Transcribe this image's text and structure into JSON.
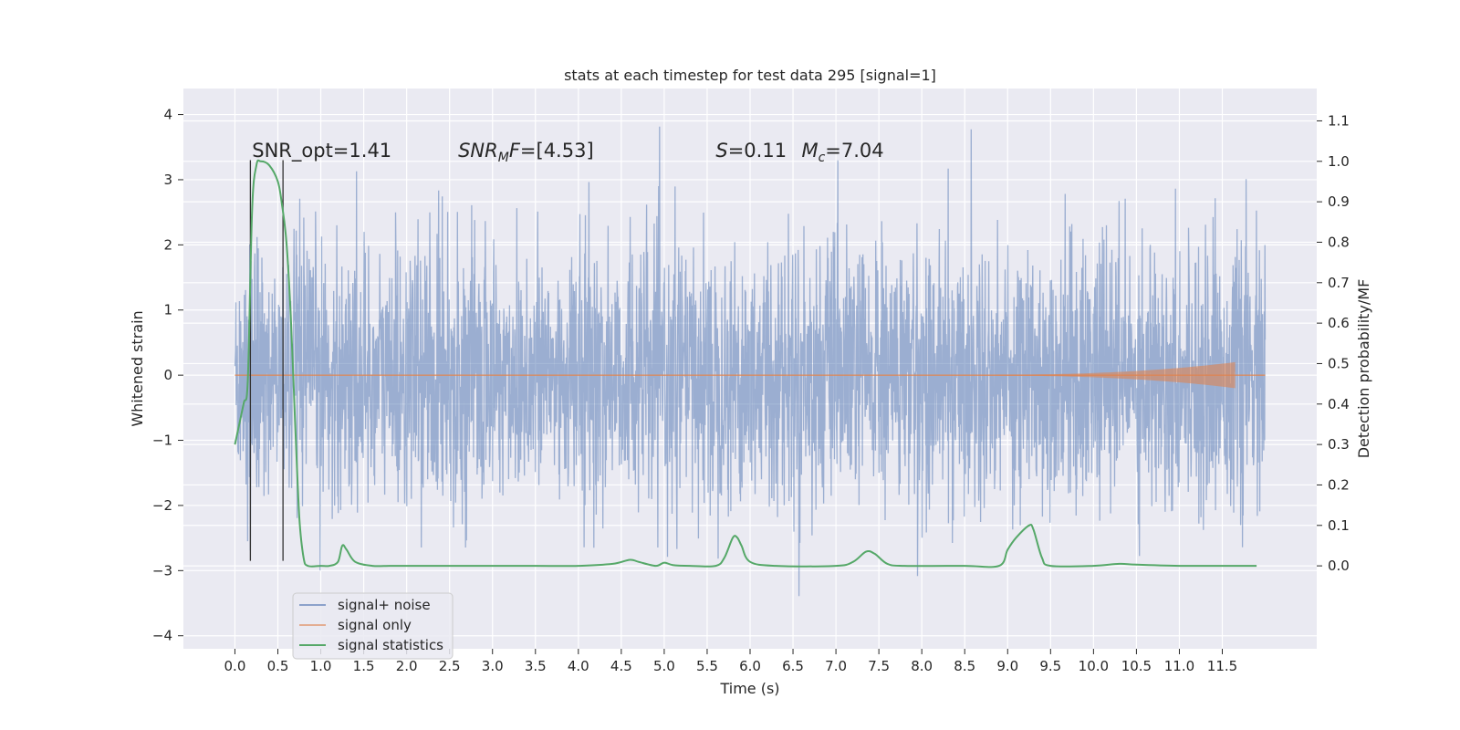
{
  "chart_data": {
    "type": "line",
    "title": "stats at each timestep for test data 295 [signal=1]",
    "xlabel": "Time (s)",
    "ylabel_left": "Whitened strain",
    "ylabel_right": "Detection probability/MF",
    "xlim": [
      -0.6,
      12.6
    ],
    "ylim_left": [
      -4.2,
      4.4
    ],
    "ylim_right": [
      -0.205,
      1.18
    ],
    "x_ticks": [
      0.0,
      0.5,
      1.0,
      1.5,
      2.0,
      2.5,
      3.0,
      3.5,
      4.0,
      4.5,
      5.0,
      5.5,
      6.0,
      6.5,
      7.0,
      7.5,
      8.0,
      8.5,
      9.0,
      9.5,
      10.0,
      10.5,
      11.0,
      11.5
    ],
    "x_tick_labels": [
      "0.0",
      "0.5",
      "1.0",
      "1.5",
      "2.0",
      "2.5",
      "3.0",
      "3.5",
      "4.0",
      "4.5",
      "5.0",
      "5.5",
      "6.0",
      "6.5",
      "7.0",
      "7.5",
      "8.0",
      "8.5",
      "9.0",
      "9.5",
      "10.0",
      "10.5",
      "11.0",
      "11.5"
    ],
    "y_left_ticks": [
      -4,
      -3,
      -2,
      -1,
      0,
      1,
      2,
      3,
      4
    ],
    "y_left_tick_labels": [
      "−4",
      "−3",
      "−2",
      "−1",
      "0",
      "1",
      "2",
      "3",
      "4"
    ],
    "y_right_ticks": [
      0.0,
      0.1,
      0.2,
      0.3,
      0.4,
      0.5,
      0.6,
      0.7,
      0.8,
      0.9,
      1.0,
      1.1
    ],
    "y_right_tick_labels": [
      "0.0",
      "0.1",
      "0.2",
      "0.3",
      "0.4",
      "0.5",
      "0.6",
      "0.7",
      "0.8",
      "0.9",
      "1.0",
      "1.1"
    ],
    "grid": true,
    "legend_position": "lower-left",
    "annotations": [
      {
        "text": "SNR_opt=1.41",
        "x": 0.2,
        "y": 3.35
      },
      {
        "text": "SNR_MF=[4.53]",
        "x": 2.6,
        "y": 3.35
      },
      {
        "text": "S=0.11",
        "x": 5.6,
        "y": 3.35
      },
      {
        "text": "M_c=7.04",
        "x": 6.6,
        "y": 3.35
      }
    ],
    "vertical_lines": [
      {
        "x": 0.18,
        "y_range": [
          -2.85,
          3.3
        ]
      },
      {
        "x": 0.56,
        "y_range": [
          -2.85,
          3.3
        ]
      }
    ],
    "series": [
      {
        "name": "signal+ noise",
        "color": "#4c72b0",
        "axis": "left",
        "x_range": [
          0.0,
          12.0
        ],
        "envelope": {
          "typical_low": -1.5,
          "typical_high": 1.5,
          "peak_max": 4.1,
          "peak_min": -3.7
        }
      },
      {
        "name": "signal only",
        "color": "#dd8452",
        "axis": "left",
        "x_range": [
          0.0,
          12.0
        ],
        "chirp_peak": {
          "x": 11.65,
          "amplitude": 0.2
        }
      },
      {
        "name": "signal statistics",
        "color": "#55a868",
        "axis": "right",
        "x": [
          0.0,
          0.1,
          0.15,
          0.2,
          0.25,
          0.3,
          0.4,
          0.5,
          0.55,
          0.6,
          0.65,
          0.7,
          0.75,
          0.8,
          0.85,
          1.0,
          1.1,
          1.2,
          1.25,
          1.3,
          1.4,
          1.6,
          1.8,
          2.0,
          2.5,
          3.0,
          3.5,
          4.0,
          4.4,
          4.6,
          4.7,
          4.9,
          5.0,
          5.1,
          5.3,
          5.6,
          5.7,
          5.8,
          5.85,
          5.9,
          6.0,
          6.3,
          7.0,
          7.2,
          7.35,
          7.45,
          7.6,
          7.8,
          8.5,
          8.9,
          9.0,
          9.1,
          9.25,
          9.3,
          9.4,
          9.5,
          10.0,
          10.3,
          10.5,
          11.0,
          11.5,
          11.9
        ],
        "values": [
          0.3,
          0.4,
          0.46,
          0.88,
          0.99,
          1.0,
          0.99,
          0.95,
          0.89,
          0.8,
          0.62,
          0.36,
          0.12,
          0.02,
          0.0,
          0.0,
          0.0,
          0.01,
          0.05,
          0.04,
          0.01,
          0.0,
          0.0,
          0.0,
          0.0,
          0.0,
          0.0,
          0.0,
          0.005,
          0.015,
          0.01,
          0.0,
          0.008,
          0.002,
          0.0,
          0.0,
          0.02,
          0.07,
          0.07,
          0.05,
          0.01,
          0.0,
          0.0,
          0.01,
          0.035,
          0.03,
          0.005,
          0.0,
          0.0,
          0.0,
          0.04,
          0.07,
          0.1,
          0.09,
          0.02,
          0.0,
          0.0,
          0.005,
          0.003,
          0.0,
          0.0,
          0.0
        ]
      }
    ]
  }
}
